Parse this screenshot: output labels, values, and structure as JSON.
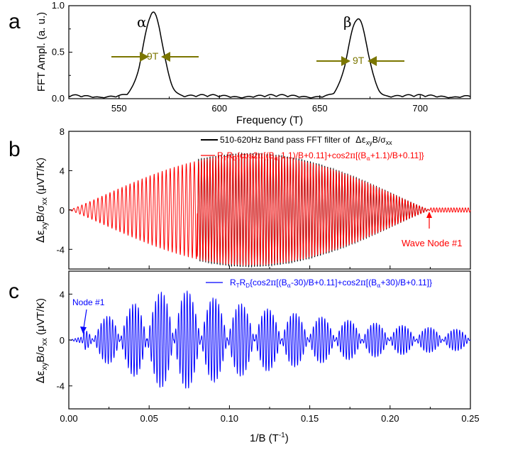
{
  "chart_data": [
    {
      "panel": "a",
      "type": "line",
      "xlabel": "Frequency (T)",
      "ylabel": "FFT Ampl. (a. u.)",
      "xlim": [
        525,
        725
      ],
      "ylim": [
        0,
        1.0
      ],
      "xticks": [
        "550",
        "600",
        "650",
        "700"
      ],
      "yticks": [
        "0.0",
        "0.5",
        "1.0"
      ],
      "peaks": [
        {
          "label": "α",
          "frequency": 567,
          "amplitude": 0.9,
          "width_label": "9T"
        },
        {
          "label": "β",
          "frequency": 669,
          "amplitude": 0.83,
          "width_label": "9T"
        }
      ],
      "series": [
        {
          "color": "#000000",
          "baseline": 0.03,
          "peak_sigma": 4.8
        }
      ]
    },
    {
      "panel": "b",
      "type": "line",
      "xlim": [
        0.0,
        0.25
      ],
      "ylim": [
        -6,
        8
      ],
      "ylabel": "Δε_xyB/σ_xx (μVT/K)",
      "yticks": [
        "-4",
        "0",
        "4",
        "8"
      ],
      "series": [
        {
          "name": "510-620Hz Band pass FFT filter of  Δε_xyB/σ_xx",
          "color": "#000000",
          "amplitude": 5.6
        },
        {
          "name": "R_TR_D{cos2π[(B_α-1.1)/B+0.11]+cos2π[(B_α+1.1)/B+0.11]}",
          "color": "#ff0000",
          "amplitude": 5.6
        }
      ],
      "annotations": [
        {
          "text": "Wave Node #1",
          "x": 0.226,
          "color": "#ff0000"
        }
      ]
    },
    {
      "panel": "c",
      "type": "line",
      "xlim": [
        0.0,
        0.25
      ],
      "ylim": [
        -6,
        6
      ],
      "xlabel": "1/B (T⁻¹)",
      "ylabel": "Δε_xyB/σ_xx (μVT/K)",
      "xticks": [
        "0.00",
        "0.05",
        "0.10",
        "0.15",
        "0.20",
        "0.25"
      ],
      "yticks": [
        "-4",
        "0",
        "4"
      ],
      "series": [
        {
          "name": "R_TR_D{cos2π[(B_α-30)/B+0.11]+cos2π[(B_α+30)/B+0.11]}",
          "color": "#0000ff",
          "amplitude": 4.6
        }
      ],
      "annotations": [
        {
          "text": "Node #1",
          "x": 0.008,
          "color": "#0000ff"
        }
      ]
    }
  ],
  "labels": {
    "panel_a": "a",
    "panel_b": "b",
    "panel_c": "c",
    "alpha": "α",
    "beta": "β",
    "width_alpha": "9T",
    "width_beta": "9T",
    "freq_xlabel": "Frequency (T)",
    "fft_ylabel": "FFT Ampl. (a. u.)",
    "invB_xlabel": "1/B (T",
    "invB_exp": "-1",
    "invB_close": ")",
    "b_legend_black": "510-620Hz Band pass FFT filter of",
    "b_wave_node": "Wave Node #1",
    "c_node": "Node #1",
    "ylabel_pre": "Δε",
    "ylabel_sub1": "xy",
    "ylabel_mid": "B/σ",
    "ylabel_sub2": "xx",
    "ylabel_unit": " (μVT/K)"
  },
  "colors": {
    "olive": "#7b7600",
    "red": "#ff0000",
    "blue": "#0000ff",
    "black": "#000000"
  }
}
